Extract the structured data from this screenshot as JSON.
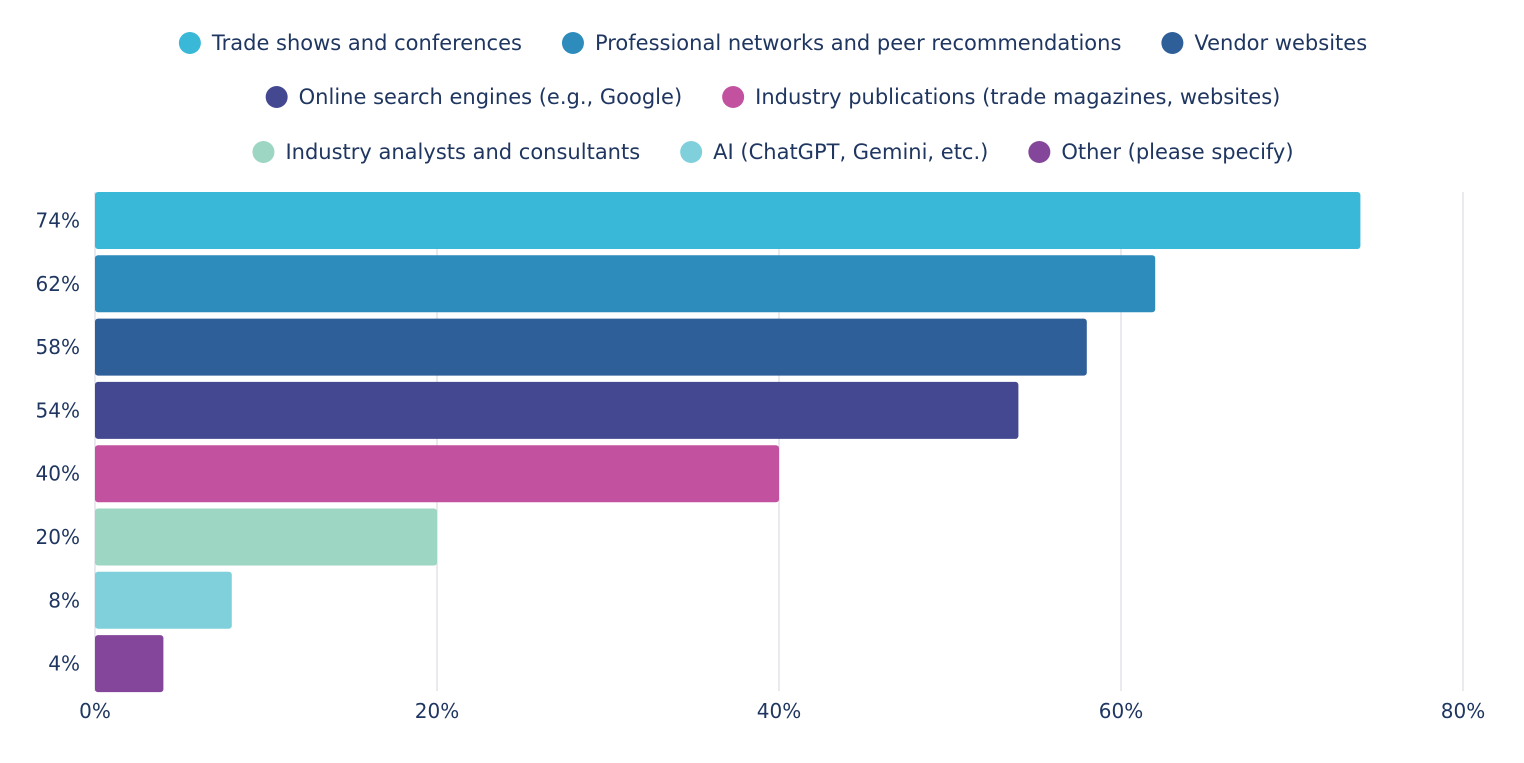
{
  "chart_data": {
    "type": "bar",
    "orientation": "horizontal",
    "title": "",
    "xlabel": "",
    "ylabel": "",
    "xlim": [
      0,
      80
    ],
    "x_ticks": [
      0,
      20,
      40,
      60,
      80
    ],
    "x_tick_labels": [
      "0%",
      "20%",
      "40%",
      "60%",
      "80%"
    ],
    "grid": true,
    "legend_position": "top-center",
    "series": [
      {
        "name": "Trade shows and conferences",
        "value": 74,
        "label": "74%",
        "color": "#3ab8d8"
      },
      {
        "name": "Professional networks and peer recommendations",
        "value": 62,
        "label": "62%",
        "color": "#2d8cbc"
      },
      {
        "name": "Vendor websites",
        "value": 58,
        "label": "58%",
        "color": "#2f5f98"
      },
      {
        "name": "Online search engines (e.g., Google)",
        "value": 54,
        "label": "54%",
        "color": "#434891"
      },
      {
        "name": "Industry publications (trade magazines, websites)",
        "value": 40,
        "label": "40%",
        "color": "#c2529f"
      },
      {
        "name": "Industry analysts and consultants",
        "value": 20,
        "label": "20%",
        "color": "#9dd6c2"
      },
      {
        "name": "AI (ChatGPT, Gemini, etc.)",
        "value": 8,
        "label": "8%",
        "color": "#7fd0da"
      },
      {
        "name": "Other (please specify)",
        "value": 4,
        "label": "4%",
        "color": "#84469a"
      }
    ]
  }
}
